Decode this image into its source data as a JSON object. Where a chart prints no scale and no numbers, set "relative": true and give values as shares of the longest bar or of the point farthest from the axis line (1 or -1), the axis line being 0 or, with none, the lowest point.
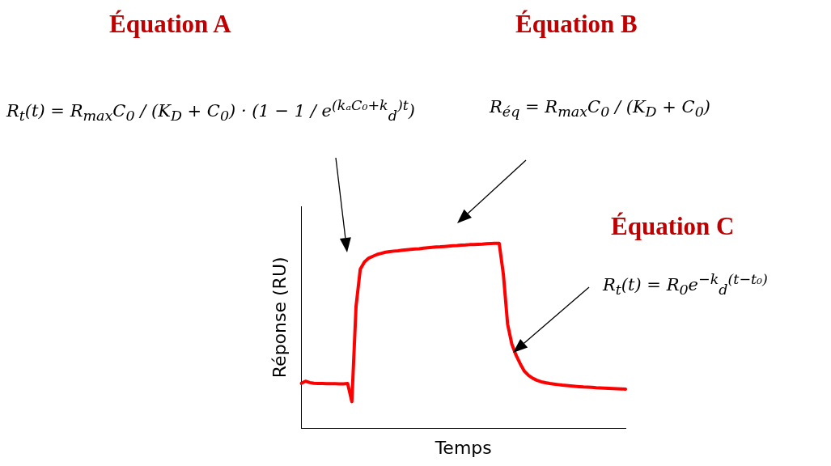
{
  "chart_data": {
    "type": "line",
    "relative": true,
    "xlabel": "Temps",
    "ylabel": "Réponse (RU)",
    "marker": "none",
    "line_style": "solid",
    "annotations": [
      "Équation A",
      "R$_{t}$(t) = R$_{max}$C$_{0}$ / (K$_{D}$ + C$_{0}$) · (1 − 1 / e$^{(kₐC₀+k}$$_{d}$$^{)t}$)",
      "Équation B",
      "R$_{éq}$ = R$_{max}$C$_{0}$ / (K$_{D}$ + C$_{0}$)",
      "Équation C",
      "R$_{t}$(t) = R$_{0}$e$^{−k}$$_{d}$$^{(t−t₀)}$"
    ],
    "categories": [
      null,
      null,
      null,
      null,
      null,
      null,
      null,
      null,
      null,
      null,
      null,
      null,
      null,
      null,
      null,
      null,
      null,
      null,
      null,
      null,
      null,
      null,
      null,
      null,
      null,
      null,
      null,
      null,
      null,
      null,
      null,
      null,
      null,
      null,
      null,
      null,
      null,
      null,
      null,
      null,
      null,
      null,
      null,
      null,
      null,
      null,
      null,
      null,
      null,
      null,
      null,
      null,
      null,
      null,
      null,
      null,
      null,
      null,
      null,
      null,
      null,
      null,
      null,
      null,
      null,
      null,
      null,
      null,
      null,
      null,
      null,
      null,
      null,
      null,
      null,
      null,
      null,
      null
    ],
    "series": [
      {
        "color": "#ff0000",
        "values": [
          0.244,
          0.255,
          0.248,
          0.244,
          0.243,
          0.243,
          0.242,
          0.242,
          0.242,
          0.241,
          0.241,
          0.243,
          0.145,
          0.66,
          0.86,
          0.9,
          0.92,
          0.93,
          0.94,
          0.946,
          0.952,
          0.955,
          0.958,
          0.96,
          0.963,
          0.965,
          0.967,
          0.969,
          0.971,
          0.974,
          0.976,
          0.978,
          0.98,
          0.981,
          0.983,
          0.985,
          0.987,
          0.988,
          0.99,
          0.991,
          0.993,
          0.994,
          0.995,
          0.996,
          0.998,
          0.999,
          1,
          1,
          0.832,
          0.564,
          0.456,
          0.396,
          0.349,
          0.309,
          0.286,
          0.271,
          0.26,
          0.252,
          0.247,
          0.243,
          0.24,
          0.237,
          0.234,
          0.232,
          0.23,
          0.228,
          0.226,
          0.224,
          0.223,
          0.222,
          0.22,
          0.219,
          0.218,
          0.217,
          0.216,
          0.215,
          0.214,
          0.212
        ]
      }
    ]
  }
}
